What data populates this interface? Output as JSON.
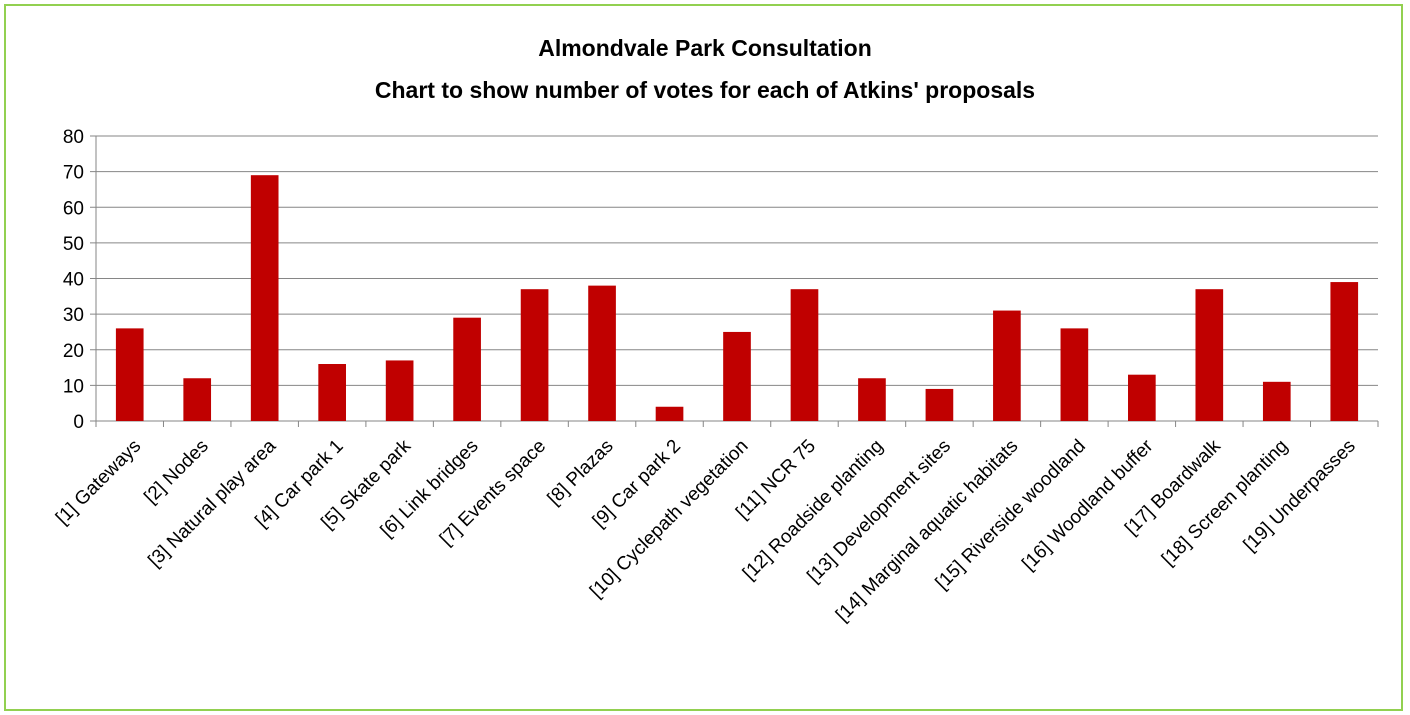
{
  "chart_data": {
    "type": "bar",
    "title": "Almondvale Park Consultation",
    "subtitle": "Chart to show number of votes for each of Atkins' proposals",
    "xlabel": "",
    "ylabel": "",
    "ylim": [
      0,
      80
    ],
    "yticks": [
      0,
      10,
      20,
      30,
      40,
      50,
      60,
      70,
      80
    ],
    "grid": true,
    "legend": "none",
    "bar_color": "#c00000",
    "border_color": "#92d050",
    "categories": [
      "[1] Gateways",
      "[2] Nodes",
      "[3] Natural play area",
      "[4] Car park 1",
      "[5] Skate park",
      "[6] Link bridges",
      "[7] Events space",
      "[8] Plazas",
      "[9] Car park 2",
      "[10] Cyclepath vegetation",
      "[11] NCR 75",
      "[12] Roadside planting",
      "[13] Development sites",
      "[14] Marginal aquatic habitats",
      "[15] Riverside woodland",
      "[16] Woodland buffer",
      "[17] Boardwalk",
      "[18] Screen planting",
      "[19] Underpasses"
    ],
    "values": [
      26,
      12,
      69,
      16,
      17,
      29,
      37,
      38,
      4,
      25,
      37,
      12,
      9,
      31,
      26,
      13,
      37,
      11,
      39
    ]
  }
}
